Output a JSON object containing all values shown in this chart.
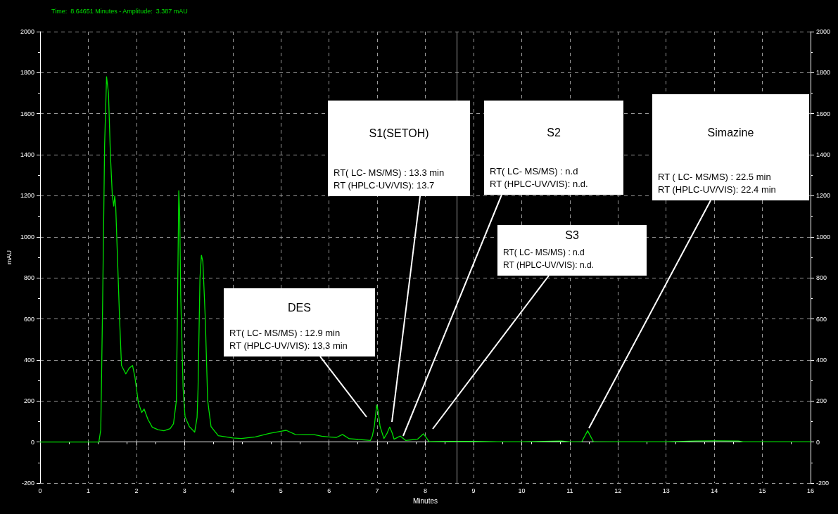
{
  "chart_data": {
    "type": "line",
    "title": "Time:  8.64651 Minutes - Amplitude:  3.387 mAU",
    "xlabel": "Minutes",
    "ylabel": "mAU",
    "x": [
      0,
      1.22,
      1.26,
      1.3,
      1.34,
      1.38,
      1.42,
      1.46,
      1.5,
      1.53,
      1.55,
      1.57,
      1.6,
      1.65,
      1.69,
      1.74,
      1.78,
      1.85,
      1.92,
      1.97,
      2.04,
      2.11,
      2.16,
      2.24,
      2.33,
      2.45,
      2.57,
      2.7,
      2.77,
      2.83,
      2.86,
      2.88,
      2.9,
      2.92,
      2.97,
      3.01,
      3.1,
      3.21,
      3.26,
      3.28,
      3.32,
      3.35,
      3.38,
      3.43,
      3.48,
      3.55,
      3.7,
      4.0,
      4.18,
      4.47,
      4.76,
      5.0,
      5.11,
      5.3,
      5.5,
      5.69,
      5.85,
      5.99,
      6.15,
      6.28,
      6.42,
      6.86,
      6.9,
      6.94,
      6.99,
      7.02,
      7.06,
      7.14,
      7.2,
      7.26,
      7.31,
      7.35,
      7.48,
      7.59,
      7.84,
      7.96,
      8.08,
      8.5,
      9.0,
      9.5,
      10.0,
      10.82,
      11.0,
      11.25,
      11.37,
      11.49,
      12.0,
      13.0,
      13.6,
      14.0,
      14.5,
      14.6,
      16.0
    ],
    "series": [
      {
        "color": "#00e000",
        "values": [
          0,
          0,
          60,
          700,
          1450,
          1780,
          1700,
          1400,
          1200,
          1150,
          1200,
          1150,
          945,
          603,
          373,
          350,
          332,
          360,
          373,
          315,
          192,
          144,
          161,
          110,
          72,
          60,
          55,
          65,
          89,
          202,
          800,
          1225,
          1100,
          716,
          260,
          123,
          75,
          48,
          120,
          260,
          800,
          910,
          880,
          603,
          202,
          75,
          31,
          20,
          17,
          25,
          42,
          52,
          57,
          37,
          36,
          36,
          28,
          25,
          22,
          37,
          16,
          8,
          30,
          76,
          181,
          150,
          76,
          17,
          40,
          73,
          45,
          14,
          29,
          8,
          14,
          40,
          2,
          3,
          3,
          1,
          1,
          5,
          1,
          2,
          55,
          2,
          1,
          1,
          5,
          6,
          5,
          1,
          1
        ]
      }
    ],
    "xlim": [
      0,
      16
    ],
    "xticks": [
      0,
      1,
      2,
      3,
      4,
      5,
      6,
      7,
      8,
      9,
      10,
      11,
      12,
      13,
      14,
      15,
      16
    ],
    "ylim": [
      -200,
      2000
    ],
    "yticks": [
      -200,
      0,
      200,
      400,
      600,
      800,
      1000,
      1200,
      1400,
      1600,
      1800,
      2000
    ],
    "y2lim": [
      -200,
      2000
    ],
    "y2ticks": [
      -200,
      0,
      200,
      400,
      600,
      800,
      1000,
      1200,
      1400,
      1600,
      1800,
      2000
    ],
    "grid": true,
    "marker": "none",
    "line_style": "solid",
    "ref_lines": [
      {
        "axis": "x",
        "value": 8.64651,
        "color": "#a0a0a0"
      }
    ],
    "annotations": [
      "DES\nRT( LC- MS/MS) : 12.9 min\nRT (HPLC-UV/VIS): 13,3 min",
      "S1(SETOH)\nRT( LC- MS/MS) : 13.3 min\nRT (HPLC-UV/VIS): 13.7",
      "S2\nRT( LC- MS/MS) : n.d\nRT (HPLC-UV/VIS): n.d.",
      "S3\nRT( LC- MS/MS) : n.d\nRT (HPLC-UV/VIS): n.d.",
      "Simazine\nRT ( LC- MS/MS) : 22.5 min\nRT (HPLC-UV/VIS): 22.4 min"
    ]
  }
}
